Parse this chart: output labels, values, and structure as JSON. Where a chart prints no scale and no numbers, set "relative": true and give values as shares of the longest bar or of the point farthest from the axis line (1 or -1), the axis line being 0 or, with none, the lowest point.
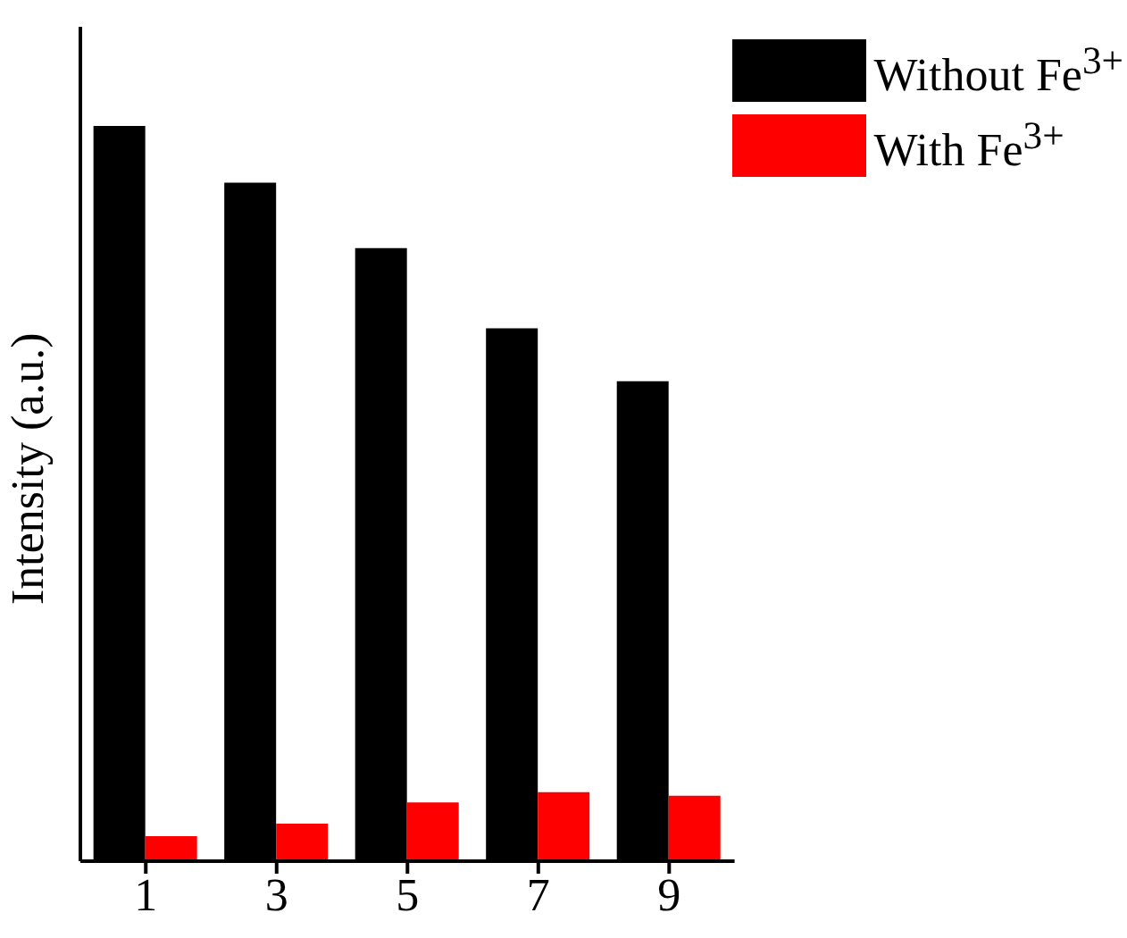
{
  "chart_data": {
    "type": "bar",
    "ylabel": "Intensity (a.u.)",
    "categories": [
      "1",
      "3",
      "5",
      "7",
      "9"
    ],
    "relative": true,
    "legend": "top right",
    "series": [
      {
        "name": "Without Fe$^{3+}$",
        "color": "#000000",
        "values": [
          1,
          0.923,
          0.834,
          0.725,
          0.653
        ]
      },
      {
        "name": "With Fe$^{3+}$",
        "color": "#ff0000",
        "values": [
          0.034,
          0.051,
          0.08,
          0.094,
          0.089
        ]
      }
    ]
  }
}
